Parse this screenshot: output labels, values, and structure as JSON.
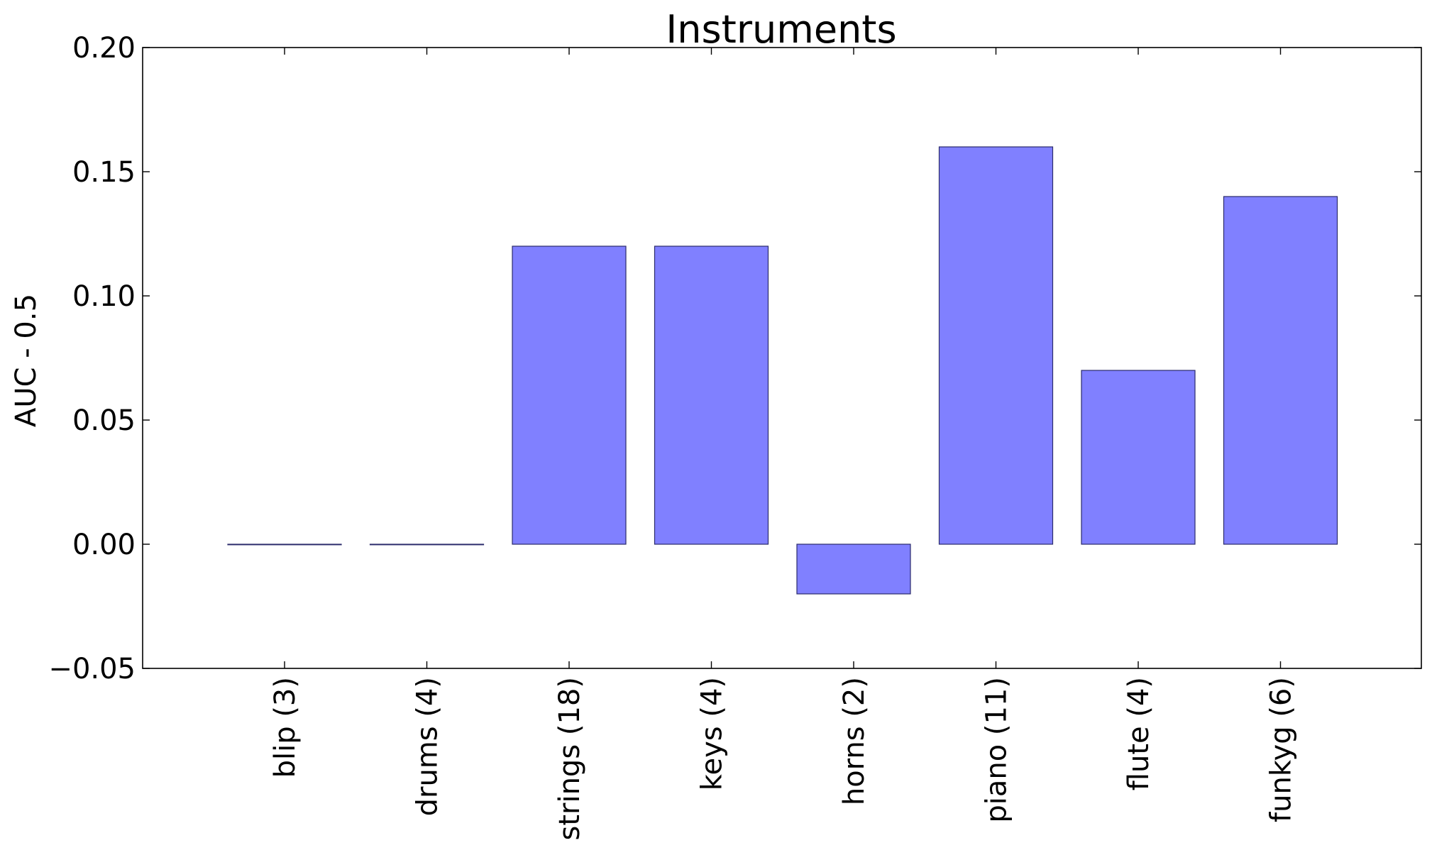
{
  "chart_data": {
    "type": "bar",
    "title": "Instruments",
    "xlabel": "",
    "ylabel": "AUC - 0.5",
    "categories": [
      "blip (3)",
      "drums (4)",
      "strings (18)",
      "keys (4)",
      "horns (2)",
      "piano (11)",
      "flute (4)",
      "funkyg (6)"
    ],
    "values": [
      0.0,
      0.0,
      0.12,
      0.12,
      -0.02,
      0.16,
      0.07,
      0.14
    ],
    "ylim": [
      -0.05,
      0.2
    ],
    "yticks": [
      "−0.05",
      "0.00",
      "0.05",
      "0.10",
      "0.15",
      "0.20"
    ],
    "ytick_values": [
      -0.05,
      0.0,
      0.05,
      0.1,
      0.15,
      0.2
    ],
    "grid": false,
    "bar_color": "#8080ff",
    "bar_edge_color": "#2b2b6b"
  }
}
